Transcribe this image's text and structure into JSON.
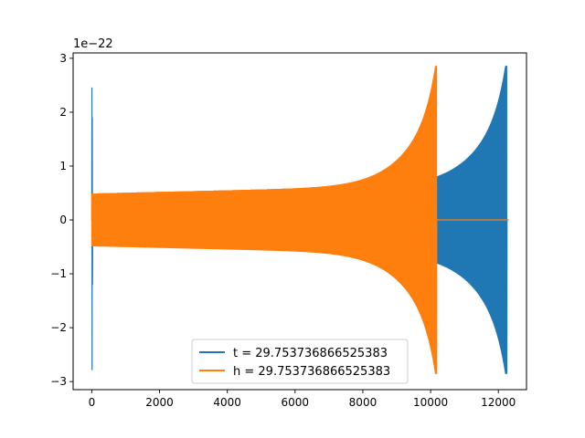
{
  "chart_data": {
    "type": "line",
    "title": "",
    "xlabel": "",
    "ylabel": "",
    "y_scale_label": "1e−22",
    "xlim": [
      -550,
      12830
    ],
    "ylim": [
      -3.15,
      3.1
    ],
    "x_ticks": [
      0,
      2000,
      4000,
      6000,
      8000,
      10000,
      12000
    ],
    "x_tick_labels": [
      "0",
      "2000",
      "4000",
      "6000",
      "8000",
      "10000",
      "12000"
    ],
    "y_ticks": [
      -3,
      -2,
      -1,
      0,
      1,
      2,
      3
    ],
    "y_tick_labels": [
      "−3",
      "−2",
      "−1",
      "0",
      "1",
      "2",
      "3"
    ],
    "grid": false,
    "legend_position": "lower center",
    "series": [
      {
        "name": "t = 29.753736866525383",
        "color": "#1f77b4",
        "signal": {
          "pre_glitch": {
            "x": [
              0,
              50
            ],
            "spike_max": 2.45,
            "spike_min": -2.78
          },
          "gap": {
            "x": [
              50,
              2000
            ],
            "amplitude": 0.0
          },
          "chirp": {
            "x": [
              2000,
              12250
            ],
            "amplitude_start": 0.5,
            "amplitude_end": 2.85,
            "amplitude_min_end": -2.85
          },
          "end": 12300
        }
      },
      {
        "name": "h = 29.753736866525383",
        "color": "#ff7f0e",
        "signal": {
          "chirp": {
            "x": [
              0,
              10180
            ],
            "amplitude_start": 0.48,
            "amplitude_end": 2.85,
            "amplitude_min_end": -2.85
          },
          "flat_after": {
            "x": [
              10180,
              12300
            ],
            "amplitude": 0.0
          }
        }
      }
    ]
  }
}
